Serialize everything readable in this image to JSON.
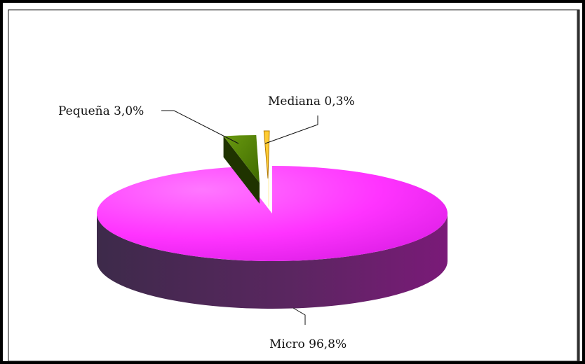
{
  "chart_data": {
    "type": "pie",
    "style": "3d-exploded",
    "title": "",
    "slices": [
      {
        "name": "Micro",
        "value": 96.8,
        "label": "Micro  96,8%",
        "color": "#ff33ff",
        "side_color": "#6e1f68"
      },
      {
        "name": "Pequeña",
        "value": 3.0,
        "label": "Pequeña 3,0%",
        "color": "#4a7a00",
        "side_color": "#1f3300"
      },
      {
        "name": "Mediana",
        "value": 0.3,
        "label": "Mediana 0,3%",
        "color": "#ffcc33",
        "side_color": "#b37a00"
      }
    ],
    "legend": "none"
  }
}
